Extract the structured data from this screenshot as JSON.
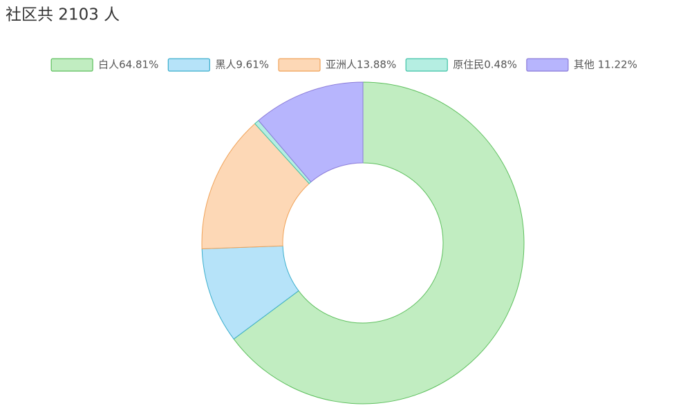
{
  "chart_data": {
    "type": "pie",
    "donut": true,
    "title": "社区共 2103 人",
    "categories": [
      "白人64.81%",
      "黑人9.61%",
      "亚洲人13.88%",
      "原住民0.48%",
      "其他 11.22%"
    ],
    "values": [
      64.81,
      9.61,
      13.88,
      0.48,
      11.22
    ],
    "colors": [
      "#c1edc1",
      "#b6e3f9",
      "#fdd8b6",
      "#b5eee2",
      "#b7b5fd"
    ],
    "stroke_colors": [
      "#5cbf5c",
      "#3aaecc",
      "#f0a258",
      "#3fc2a6",
      "#8a7ad8"
    ],
    "legend": "top"
  }
}
